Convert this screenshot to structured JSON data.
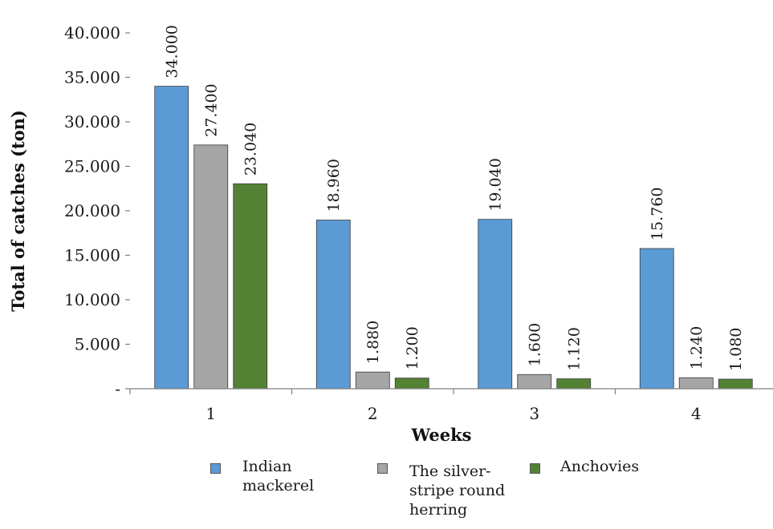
{
  "chart_data": {
    "type": "bar",
    "categories": [
      "1",
      "2",
      "3",
      "4"
    ],
    "series": [
      {
        "name": "Indian mackerel",
        "color": "#5b9bd5",
        "values": [
          34000,
          18960,
          19040,
          15760
        ],
        "labels": [
          "34.000",
          "18.960",
          "19.040",
          "15.760"
        ]
      },
      {
        "name": "The silver-stripe round herring",
        "color": "#a5a5a5",
        "values": [
          27400,
          1880,
          1600,
          1240
        ],
        "labels": [
          "27.400",
          "1.880",
          "1.600",
          "1.240"
        ]
      },
      {
        "name": "Anchovies",
        "color": "#548235",
        "values": [
          23040,
          1200,
          1120,
          1080
        ],
        "labels": [
          "23.040",
          "1.200",
          "1.120",
          "1.080"
        ]
      }
    ],
    "xlabel": "Weeks",
    "ylabel": "Total of catches  (ton)",
    "ylim": [
      0,
      40000
    ],
    "yticks": [
      "-",
      "5.000",
      "10.000",
      "15.000",
      "20.000",
      "25.000",
      "30.000",
      "35.000",
      "40.000"
    ],
    "grid": false,
    "legend_position": "bottom"
  }
}
